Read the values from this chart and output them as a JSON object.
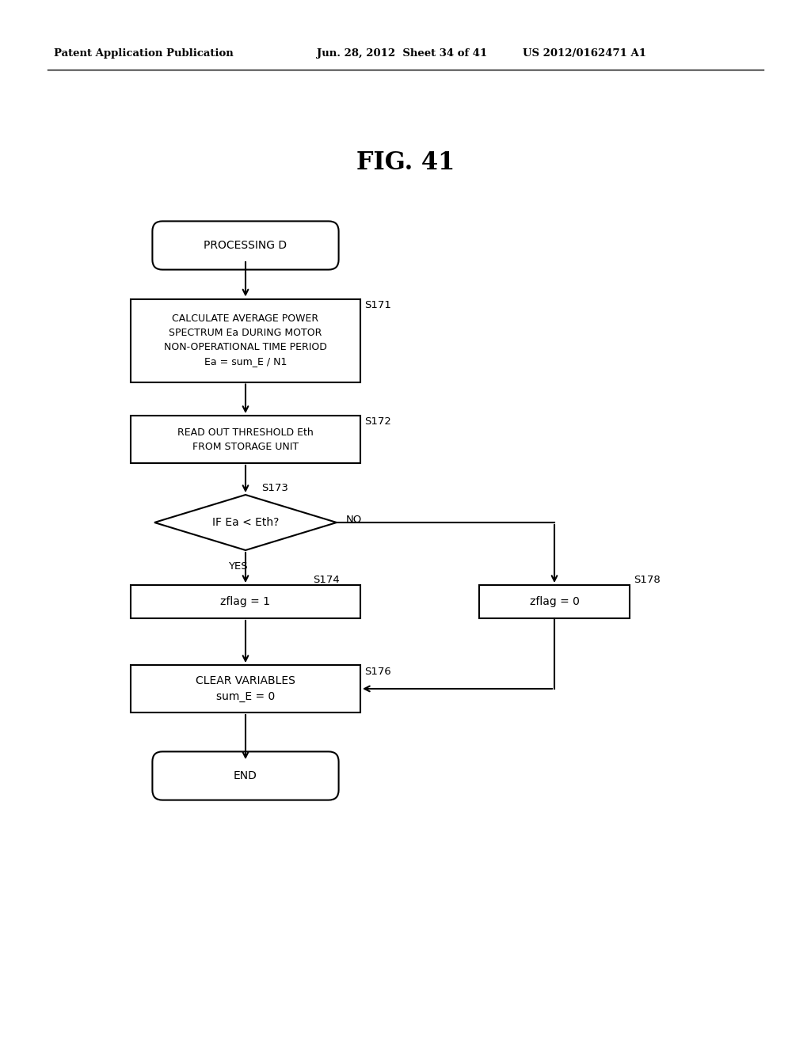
{
  "title": "FIG. 41",
  "header_left": "Patent Application Publication",
  "header_mid": "Jun. 28, 2012  Sheet 34 of 41",
  "header_right": "US 2012/0162471 A1",
  "background_color": "#ffffff",
  "text_color": "#000000",
  "fig_width": 10.24,
  "fig_height": 13.2,
  "dpi": 100,
  "nodes": {
    "start": {
      "label": "PROCESSING D",
      "type": "stadium"
    },
    "s171": {
      "label": "CALCULATE AVERAGE POWER\nSPECTRUM Ea DURING MOTOR\nNON-OPERATIONAL TIME PERIOD\nEa = sum_E / N1",
      "type": "rect",
      "step": "S171"
    },
    "s172": {
      "label": "READ OUT THRESHOLD Eth\nFROM STORAGE UNIT",
      "type": "rect",
      "step": "S172"
    },
    "s173": {
      "label": "IF Ea < Eth?",
      "type": "diamond",
      "step": "S173"
    },
    "s174": {
      "label": "zflag = 1",
      "type": "rect",
      "step": "S174"
    },
    "s178": {
      "label": "zflag = 0",
      "type": "rect",
      "step": "S178"
    },
    "s176": {
      "label": "CLEAR VARIABLES\nsum_E = 0",
      "type": "rect",
      "step": "S176"
    },
    "end": {
      "label": "END",
      "type": "stadium"
    }
  }
}
